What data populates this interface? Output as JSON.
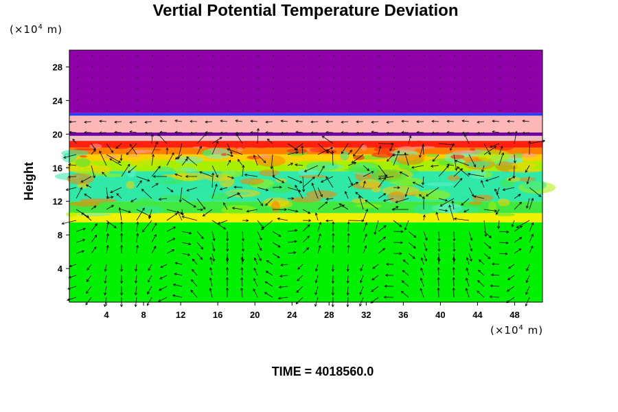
{
  "chart_data": {
    "type": "heatmap",
    "title": "Vertial Potential Temperature Deviation",
    "ylabel": "Height",
    "y_unit_prefix": "(×10",
    "y_unit_exp": "4",
    "y_unit_suffix": " m)",
    "x_unit_prefix": "(×10",
    "x_unit_exp": "4",
    "x_unit_suffix": " m)",
    "xlim": [
      0,
      51
    ],
    "ylim": [
      0,
      30
    ],
    "x_ticks": [
      "4",
      "8",
      "12",
      "16",
      "20",
      "24",
      "28",
      "32",
      "36",
      "40",
      "44",
      "48"
    ],
    "y_ticks": [
      "4",
      "8",
      "12",
      "16",
      "20",
      "24",
      "28"
    ],
    "layers": [
      {
        "y0": 0,
        "y1": 9.5,
        "color": "#00f000"
      },
      {
        "y0": 9.5,
        "y1": 10.6,
        "color": "#f0f000"
      },
      {
        "y0": 10.6,
        "y1": 12.0,
        "color": "#40e840"
      },
      {
        "y0": 12.0,
        "y1": 15.6,
        "color": "#30e8a8"
      },
      {
        "y0": 15.6,
        "y1": 16.8,
        "color": "#a8f000"
      },
      {
        "y0": 16.8,
        "y1": 17.6,
        "color": "#ffd000"
      },
      {
        "y0": 17.6,
        "y1": 18.4,
        "color": "#ff8000"
      },
      {
        "y0": 18.4,
        "y1": 19.2,
        "color": "#ff2010"
      },
      {
        "y0": 19.2,
        "y1": 19.8,
        "color": "#f0c0c0"
      },
      {
        "y0": 19.8,
        "y1": 20.2,
        "color": "#7000a0"
      },
      {
        "y0": 20.2,
        "y1": 22.2,
        "color": "#ffb8b8"
      },
      {
        "y0": 22.2,
        "y1": 22.5,
        "color": "#2040ff"
      },
      {
        "y0": 22.5,
        "y1": 30,
        "color": "#9000a8"
      }
    ],
    "time_label": "TIME = 4018560.0"
  }
}
